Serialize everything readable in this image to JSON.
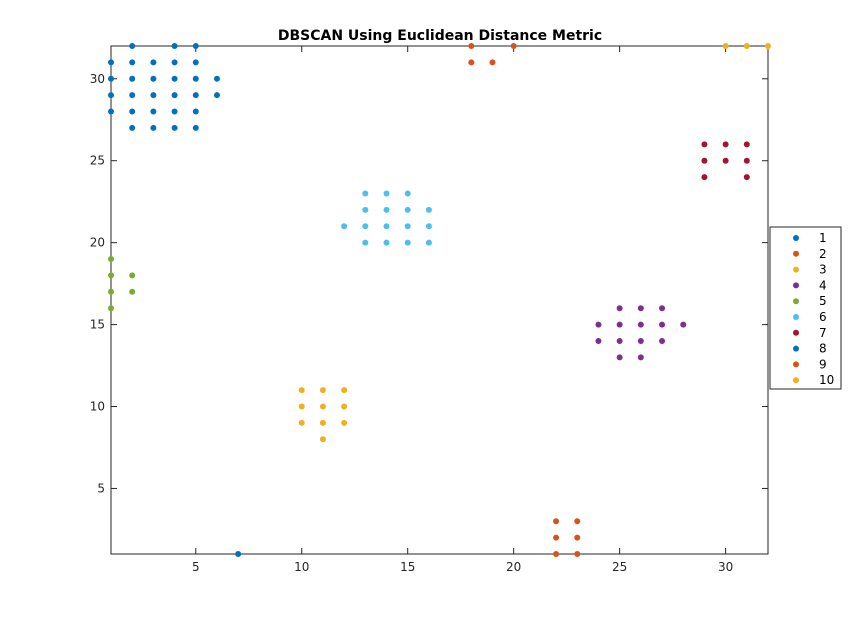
{
  "chart_data": {
    "type": "scatter",
    "title": "DBSCAN Using Euclidean Distance Metric",
    "xlabel": "",
    "ylabel": "",
    "xlim": [
      1,
      32
    ],
    "ylim": [
      1,
      32
    ],
    "xticks": [
      5,
      10,
      15,
      20,
      25,
      30
    ],
    "yticks": [
      5,
      10,
      15,
      20,
      25,
      30
    ],
    "grid": false,
    "legend_position": "right",
    "series": [
      {
        "name": "1",
        "color": "#0072BD",
        "points": [
          [
            1,
            28
          ],
          [
            1,
            29
          ],
          [
            1,
            30
          ],
          [
            1,
            31
          ],
          [
            2,
            27
          ],
          [
            2,
            28
          ],
          [
            2,
            29
          ],
          [
            2,
            30
          ],
          [
            2,
            31
          ],
          [
            2,
            32
          ],
          [
            3,
            27
          ],
          [
            3,
            28
          ],
          [
            3,
            29
          ],
          [
            3,
            30
          ],
          [
            3,
            31
          ],
          [
            4,
            27
          ],
          [
            4,
            28
          ],
          [
            4,
            29
          ],
          [
            4,
            30
          ],
          [
            4,
            31
          ],
          [
            4,
            32
          ],
          [
            5,
            27
          ],
          [
            5,
            28
          ],
          [
            5,
            29
          ],
          [
            5,
            30
          ],
          [
            5,
            31
          ],
          [
            5,
            32
          ],
          [
            6,
            29
          ],
          [
            6,
            30
          ]
        ]
      },
      {
        "name": "2",
        "color": "#D95319",
        "points": [
          [
            18,
            31
          ],
          [
            18,
            32
          ],
          [
            19,
            31
          ],
          [
            20,
            32
          ]
        ]
      },
      {
        "name": "3",
        "color": "#EDB120",
        "points": [
          [
            10,
            9
          ],
          [
            10,
            10
          ],
          [
            10,
            11
          ],
          [
            11,
            8
          ],
          [
            11,
            9
          ],
          [
            11,
            10
          ],
          [
            11,
            11
          ],
          [
            12,
            9
          ],
          [
            12,
            10
          ],
          [
            12,
            11
          ]
        ]
      },
      {
        "name": "4",
        "color": "#7E2F8E",
        "points": [
          [
            24,
            14
          ],
          [
            24,
            15
          ],
          [
            25,
            13
          ],
          [
            25,
            14
          ],
          [
            25,
            15
          ],
          [
            25,
            16
          ],
          [
            26,
            13
          ],
          [
            26,
            14
          ],
          [
            26,
            15
          ],
          [
            26,
            16
          ],
          [
            27,
            14
          ],
          [
            27,
            15
          ],
          [
            27,
            16
          ],
          [
            28,
            15
          ]
        ]
      },
      {
        "name": "5",
        "color": "#77AC30",
        "points": [
          [
            1,
            16
          ],
          [
            1,
            17
          ],
          [
            1,
            18
          ],
          [
            1,
            19
          ],
          [
            2,
            17
          ],
          [
            2,
            18
          ]
        ]
      },
      {
        "name": "6",
        "color": "#4DBEEE",
        "points": [
          [
            12,
            21
          ],
          [
            13,
            20
          ],
          [
            13,
            21
          ],
          [
            13,
            22
          ],
          [
            13,
            23
          ],
          [
            14,
            20
          ],
          [
            14,
            21
          ],
          [
            14,
            22
          ],
          [
            14,
            23
          ],
          [
            15,
            20
          ],
          [
            15,
            21
          ],
          [
            15,
            22
          ],
          [
            15,
            23
          ],
          [
            16,
            20
          ],
          [
            16,
            21
          ],
          [
            16,
            22
          ]
        ]
      },
      {
        "name": "7",
        "color": "#A2142F",
        "points": [
          [
            29,
            24
          ],
          [
            29,
            25
          ],
          [
            29,
            26
          ],
          [
            30,
            25
          ],
          [
            30,
            26
          ],
          [
            31,
            24
          ],
          [
            31,
            25
          ],
          [
            31,
            26
          ]
        ]
      },
      {
        "name": "8",
        "color": "#0072BD",
        "points": [
          [
            7,
            1
          ]
        ]
      },
      {
        "name": "9",
        "color": "#D95319",
        "points": [
          [
            22,
            1
          ],
          [
            22,
            2
          ],
          [
            22,
            3
          ],
          [
            23,
            1
          ],
          [
            23,
            2
          ],
          [
            23,
            3
          ]
        ]
      },
      {
        "name": "10",
        "color": "#EDB120",
        "points": [
          [
            30,
            32
          ],
          [
            31,
            32
          ],
          [
            32,
            32
          ]
        ]
      }
    ]
  }
}
